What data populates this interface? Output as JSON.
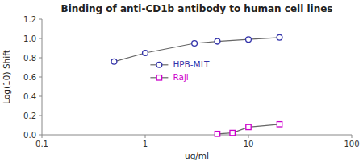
{
  "chart_data": {
    "type": "line",
    "title": "Binding of anti-CD1b antibody to human cell lines",
    "xlabel": "ug/ml",
    "ylabel": "Log(10) Shift",
    "log": "x",
    "grid": false,
    "legend": "center",
    "color": "#666666",
    "xlim": [
      0.1,
      100
    ],
    "xticks": [
      0.1,
      1,
      10,
      100
    ],
    "ylim": [
      0,
      1.2
    ],
    "yticks": [
      {
        "value": 0,
        "label": "0.0"
      },
      0.2,
      0.4,
      0.6,
      0.8,
      {
        "value": 1.0,
        "label": "1.0"
      },
      1.2
    ],
    "series": [
      {
        "name": "HPB-MLT",
        "color": "#3333aa",
        "marker": "circle",
        "x": [
          0.5,
          1.0,
          3.0,
          5.0,
          10.0,
          20.0
        ],
        "values": [
          0.76,
          0.85,
          0.95,
          0.97,
          0.99,
          1.01
        ]
      },
      {
        "name": "Raji",
        "color": "#cc00cc",
        "marker": "square",
        "x": [
          5.0,
          7.0,
          10.0,
          20.0
        ],
        "values": [
          0.01,
          0.02,
          0.08,
          0.11
        ]
      }
    ]
  }
}
